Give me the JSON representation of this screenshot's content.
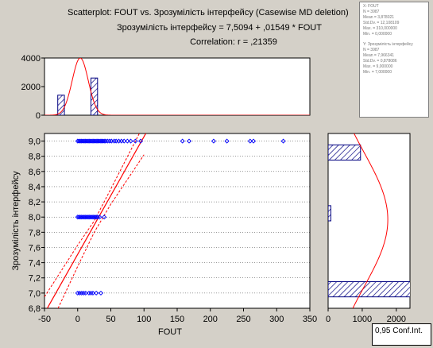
{
  "colors": {
    "bg": "#d4d0c8",
    "points": "#0000ff",
    "fit": "#ff0000",
    "hatch": "#000080"
  },
  "title": {
    "line1": "Scatterplot: FOUT     vs. Зрозумілість інтерфейсу   (Casewise MD deletion)",
    "line2": "Зрозумілість інтерфейсу = 7,5094 + ,01549 * FOUT",
    "line3": "Correlation: r = ,21359"
  },
  "stats_box": {
    "x_var": {
      "name": "X: FOUT",
      "lines": [
        "N = 3987",
        "Mean = 3,878021",
        "Std.Dv. = 12,108109",
        "Max. = 310,000000",
        "Min. = 0,000000"
      ]
    },
    "y_var": {
      "name": "Y: Зрозумілість інтерфейсу",
      "lines": [
        "N = 3987",
        "Mean = 7,966341",
        "Std.Dv. = 0,878086",
        "Max. = 9,000000",
        "Min. = 7,000000"
      ]
    }
  },
  "legend": {
    "label": "0,95 Conf.Int."
  },
  "chart_data": [
    {
      "type": "scatter",
      "name": "main",
      "xlabel": "FOUT",
      "ylabel": "Зрозумілість інтерфейсу",
      "xlim": [
        -50,
        350
      ],
      "ylim": [
        6.8,
        9.1
      ],
      "xticks": [
        -50,
        0,
        50,
        100,
        150,
        200,
        250,
        300,
        350
      ],
      "xtick_labels": [
        "-50",
        "0",
        "50",
        "100",
        "150",
        "200",
        "250",
        "300",
        "350"
      ],
      "yticks": [
        6.8,
        7.0,
        7.2,
        7.4,
        7.6,
        7.8,
        8.0,
        8.2,
        8.4,
        8.6,
        8.8,
        9.0
      ],
      "ytick_labels": [
        "6,8",
        "7,0",
        "7,2",
        "7,4",
        "7,6",
        "7,8",
        "8,0",
        "8,2",
        "8,4",
        "8,6",
        "8,8",
        "9,0"
      ],
      "grid": true,
      "regression": {
        "intercept": 7.5094,
        "slope": 0.01549
      },
      "confidence_band": [
        {
          "x": -50,
          "lower": 6.42,
          "upper": 6.95
        },
        {
          "x": 0,
          "lower": 7.35,
          "upper": 7.63
        },
        {
          "x": 25,
          "lower": 7.8,
          "upper": 7.95
        },
        {
          "x": 50,
          "lower": 8.17,
          "upper": 8.37
        },
        {
          "x": 100,
          "lower": 8.82,
          "upper": 9.22
        }
      ],
      "points": [
        {
          "x": 0,
          "y": 9
        },
        {
          "x": 2,
          "y": 9
        },
        {
          "x": 4,
          "y": 9
        },
        {
          "x": 6,
          "y": 9
        },
        {
          "x": 8,
          "y": 9
        },
        {
          "x": 10,
          "y": 9
        },
        {
          "x": 12,
          "y": 9
        },
        {
          "x": 14,
          "y": 9
        },
        {
          "x": 16,
          "y": 9
        },
        {
          "x": 18,
          "y": 9
        },
        {
          "x": 20,
          "y": 9
        },
        {
          "x": 22,
          "y": 9
        },
        {
          "x": 24,
          "y": 9
        },
        {
          "x": 26,
          "y": 9
        },
        {
          "x": 28,
          "y": 9
        },
        {
          "x": 30,
          "y": 9
        },
        {
          "x": 32,
          "y": 9
        },
        {
          "x": 34,
          "y": 9
        },
        {
          "x": 36,
          "y": 9
        },
        {
          "x": 38,
          "y": 9
        },
        {
          "x": 40,
          "y": 9
        },
        {
          "x": 42,
          "y": 9
        },
        {
          "x": 45,
          "y": 9
        },
        {
          "x": 48,
          "y": 9
        },
        {
          "x": 51,
          "y": 9
        },
        {
          "x": 55,
          "y": 9
        },
        {
          "x": 58,
          "y": 9
        },
        {
          "x": 62,
          "y": 9
        },
        {
          "x": 66,
          "y": 9
        },
        {
          "x": 70,
          "y": 9
        },
        {
          "x": 75,
          "y": 9
        },
        {
          "x": 80,
          "y": 9
        },
        {
          "x": 87,
          "y": 9
        },
        {
          "x": 95,
          "y": 9
        },
        {
          "x": 158,
          "y": 9
        },
        {
          "x": 168,
          "y": 9
        },
        {
          "x": 205,
          "y": 9
        },
        {
          "x": 225,
          "y": 9
        },
        {
          "x": 260,
          "y": 9
        },
        {
          "x": 265,
          "y": 9
        },
        {
          "x": 310,
          "y": 9
        },
        {
          "x": 0,
          "y": 8
        },
        {
          "x": 2,
          "y": 8
        },
        {
          "x": 4,
          "y": 8
        },
        {
          "x": 6,
          "y": 8
        },
        {
          "x": 8,
          "y": 8
        },
        {
          "x": 10,
          "y": 8
        },
        {
          "x": 12,
          "y": 8
        },
        {
          "x": 14,
          "y": 8
        },
        {
          "x": 16,
          "y": 8
        },
        {
          "x": 18,
          "y": 8
        },
        {
          "x": 20,
          "y": 8
        },
        {
          "x": 22,
          "y": 8
        },
        {
          "x": 24,
          "y": 8
        },
        {
          "x": 26,
          "y": 8
        },
        {
          "x": 28,
          "y": 8
        },
        {
          "x": 30,
          "y": 8
        },
        {
          "x": 33,
          "y": 8
        },
        {
          "x": 40,
          "y": 8
        },
        {
          "x": 0,
          "y": 7
        },
        {
          "x": 3,
          "y": 7
        },
        {
          "x": 6,
          "y": 7
        },
        {
          "x": 9,
          "y": 7
        },
        {
          "x": 12,
          "y": 7
        },
        {
          "x": 17,
          "y": 7
        },
        {
          "x": 20,
          "y": 7
        },
        {
          "x": 23,
          "y": 7
        },
        {
          "x": 28,
          "y": 7
        },
        {
          "x": 35,
          "y": 7
        }
      ]
    },
    {
      "type": "bar",
      "name": "x-histogram",
      "ylim": [
        0,
        4000
      ],
      "yticks": [
        0,
        2000,
        4000
      ],
      "ytick_labels": [
        "0",
        "2000",
        "4000"
      ],
      "bins": [
        {
          "x0": -30,
          "x1": -20,
          "value": 1400
        },
        {
          "x0": 20,
          "x1": 30,
          "value": 2600
        }
      ],
      "normal_curve": {
        "mean": 3.878021,
        "sd": 12.108109,
        "peak": 4000
      }
    },
    {
      "type": "bar",
      "name": "y-histogram",
      "xlim": [
        0,
        2400
      ],
      "xticks": [
        0,
        1000,
        2000
      ],
      "xtick_labels": [
        "0",
        "1000",
        "2000"
      ],
      "bins": [
        {
          "y0": 8.75,
          "y1": 8.95,
          "value": 950
        },
        {
          "y0": 7.95,
          "y1": 8.15,
          "value": 80
        },
        {
          "y0": 6.95,
          "y1": 7.15,
          "value": 2600
        }
      ],
      "normal_curve": {
        "mean": 7.966341,
        "sd": 0.878086,
        "peak": 1750
      }
    }
  ]
}
